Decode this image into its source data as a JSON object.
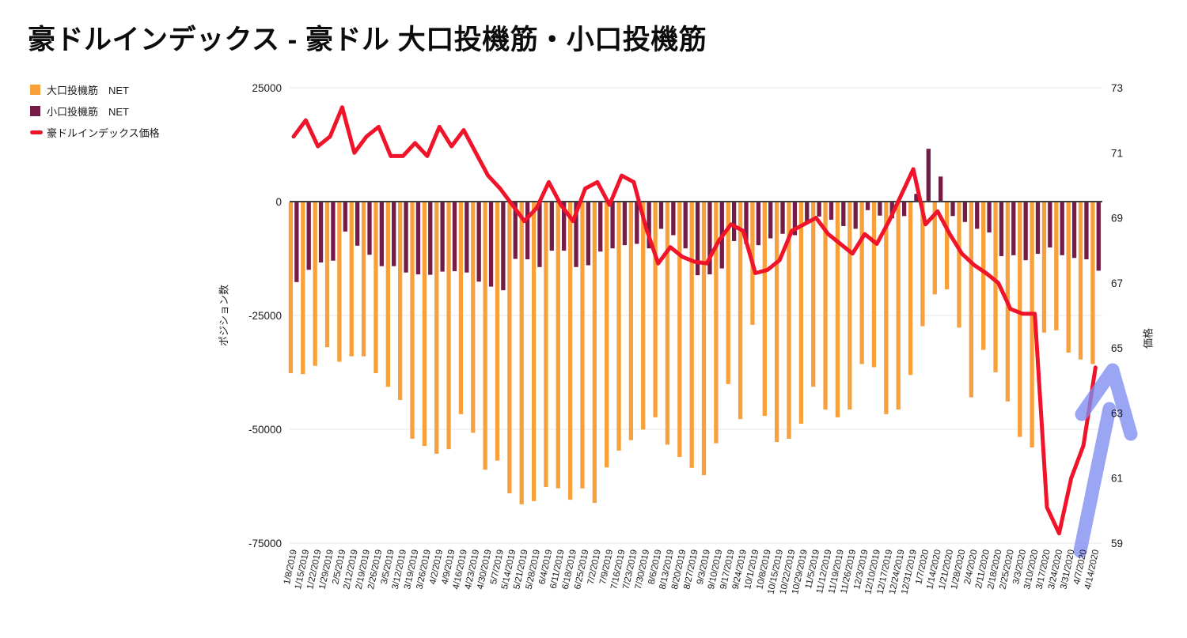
{
  "title": "豪ドルインデックス - 豪ドル 大口投機筋・小口投機筋",
  "legend": {
    "items": [
      {
        "label": "大口投機筋　NET",
        "type": "square",
        "color": "#F7A03C"
      },
      {
        "label": "小口投機筋　NET",
        "type": "square",
        "color": "#741B47"
      },
      {
        "label": "豪ドルインデックス価格",
        "type": "line",
        "color": "#F0142B"
      }
    ]
  },
  "left_axis": {
    "title": "ポジション数",
    "ticks": [
      "25000",
      "0",
      "-25000",
      "-50000",
      "-75000"
    ],
    "range": [
      -75000,
      25000
    ]
  },
  "right_axis": {
    "title": "価格",
    "ticks": [
      "73",
      "71",
      "69",
      "67",
      "65",
      "63",
      "61",
      "59"
    ],
    "range": [
      59,
      73
    ]
  },
  "chart_data": {
    "type": "combo",
    "grid": true,
    "legend_position": "top-left",
    "categories": [
      "1/8/2019",
      "1/15/2019",
      "1/22/2019",
      "1/29/2019",
      "2/5/2019",
      "2/12/2019",
      "2/19/2019",
      "2/26/2019",
      "3/5/2019",
      "3/12/2019",
      "3/19/2019",
      "3/26/2019",
      "4/2/2019",
      "4/9/2019",
      "4/16/2019",
      "4/23/2019",
      "4/30/2019",
      "5/7/2019",
      "5/14/2019",
      "5/21/2019",
      "5/28/2019",
      "6/4/2019",
      "6/11/2019",
      "6/18/2019",
      "6/25/2019",
      "7/2/2019",
      "7/9/2019",
      "7/16/2019",
      "7/23/2019",
      "7/30/2019",
      "8/6/2019",
      "8/13/2019",
      "8/20/2019",
      "8/27/2019",
      "9/3/2019",
      "9/10/2019",
      "9/17/2019",
      "9/24/2019",
      "10/1/2019",
      "10/8/2019",
      "10/15/2019",
      "10/22/2019",
      "10/29/2019",
      "11/5/2019",
      "11/12/2019",
      "11/19/2019",
      "11/26/2019",
      "12/3/2019",
      "12/10/2019",
      "12/17/2019",
      "12/24/2019",
      "12/31/2019",
      "1/7/2020",
      "1/14/2020",
      "1/21/2020",
      "1/28/2020",
      "2/4/2020",
      "2/11/2020",
      "2/18/2020",
      "2/25/2020",
      "3/3/2020",
      "3/10/2020",
      "3/17/2020",
      "3/24/2020",
      "3/31/2020",
      "4/7/2020",
      "4/14/2020"
    ],
    "series": [
      {
        "name": "大口投機筋　NET",
        "type": "bar",
        "axis": "left",
        "color": "#F7A03C",
        "values": [
          -37500,
          -37700,
          -35900,
          -31800,
          -35000,
          -33800,
          -33800,
          -37500,
          -40500,
          -43400,
          -51900,
          -53500,
          -55200,
          -54200,
          -46500,
          -50600,
          -58700,
          -56700,
          -63900,
          -66300,
          -65600,
          -62500,
          -62800,
          -65300,
          -62800,
          -66000,
          -58200,
          -54500,
          -52200,
          -49900,
          -47200,
          -53200,
          -55900,
          -58300,
          -59900,
          -52900,
          -39900,
          -47600,
          -26900,
          -46900,
          -52600,
          -51900,
          -48600,
          -40500,
          -45500,
          -47200,
          -45500,
          -35500,
          -36200,
          -46500,
          -45500,
          -37900,
          -27200,
          -20200,
          -19100,
          -27500,
          -42800,
          -32400,
          -37300,
          -43700,
          -51500,
          -53800,
          -28600,
          -28100,
          -33000,
          -34500,
          -35500
        ]
      },
      {
        "name": "小口投機筋　NET",
        "type": "bar",
        "axis": "left",
        "color": "#741B47",
        "values": [
          -17500,
          -14800,
          -13200,
          -12800,
          -6400,
          -9500,
          -11500,
          -14000,
          -14000,
          -15400,
          -15800,
          -15900,
          -15200,
          -15100,
          -15400,
          -17400,
          -18500,
          -19300,
          -12400,
          -12500,
          -14200,
          -10600,
          -10600,
          -14200,
          -13800,
          -10800,
          -10100,
          -9400,
          -9100,
          -10100,
          -5800,
          -7200,
          -10100,
          -16000,
          -15800,
          -14500,
          -8500,
          -9100,
          -9400,
          -7900,
          -6900,
          -7200,
          -4500,
          -3100,
          -3800,
          -5200,
          -5800,
          -1700,
          -2900,
          -3500,
          -3000,
          1700,
          11600,
          5500,
          -3000,
          -4300,
          -5800,
          -6600,
          -11800,
          -11600,
          -12700,
          -11300,
          -9900,
          -11600,
          -12200,
          -12500,
          -15000
        ]
      },
      {
        "name": "豪ドルインデックス価格",
        "type": "line",
        "axis": "right",
        "color": "#F0142B",
        "values": [
          71.5,
          72.0,
          71.2,
          71.5,
          72.4,
          71.0,
          71.5,
          71.8,
          70.9,
          70.9,
          71.3,
          70.9,
          71.8,
          71.2,
          71.7,
          71.0,
          70.3,
          69.9,
          69.4,
          68.9,
          69.3,
          70.1,
          69.4,
          68.9,
          69.9,
          70.1,
          69.4,
          70.3,
          70.1,
          68.7,
          67.6,
          68.1,
          67.8,
          67.65,
          67.6,
          68.3,
          68.8,
          68.6,
          67.3,
          67.4,
          67.7,
          68.6,
          68.8,
          69.0,
          68.5,
          68.2,
          67.9,
          68.5,
          68.2,
          68.9,
          69.7,
          70.5,
          68.8,
          69.2,
          68.5,
          67.9,
          67.55,
          67.3,
          67.0,
          66.2,
          66.05,
          66.05,
          60.1,
          59.3,
          61.0,
          62.0,
          64.4
        ]
      }
    ]
  },
  "annotation": {
    "name": "up-trend-arrow",
    "color": "#7D8CF1",
    "opacity": 0.78,
    "stroke_width": 17,
    "shaft": [
      [
        1365,
        697
      ],
      [
        1402,
        517
      ]
    ],
    "head": [
      [
        1367,
        524
      ],
      [
        1406,
        468
      ],
      [
        1429,
        549
      ]
    ]
  },
  "colors": {
    "grid": "#e7e7e7",
    "zero_line": "#3d3d3d",
    "text": "#1a1a1a",
    "background": "#ffffff"
  }
}
